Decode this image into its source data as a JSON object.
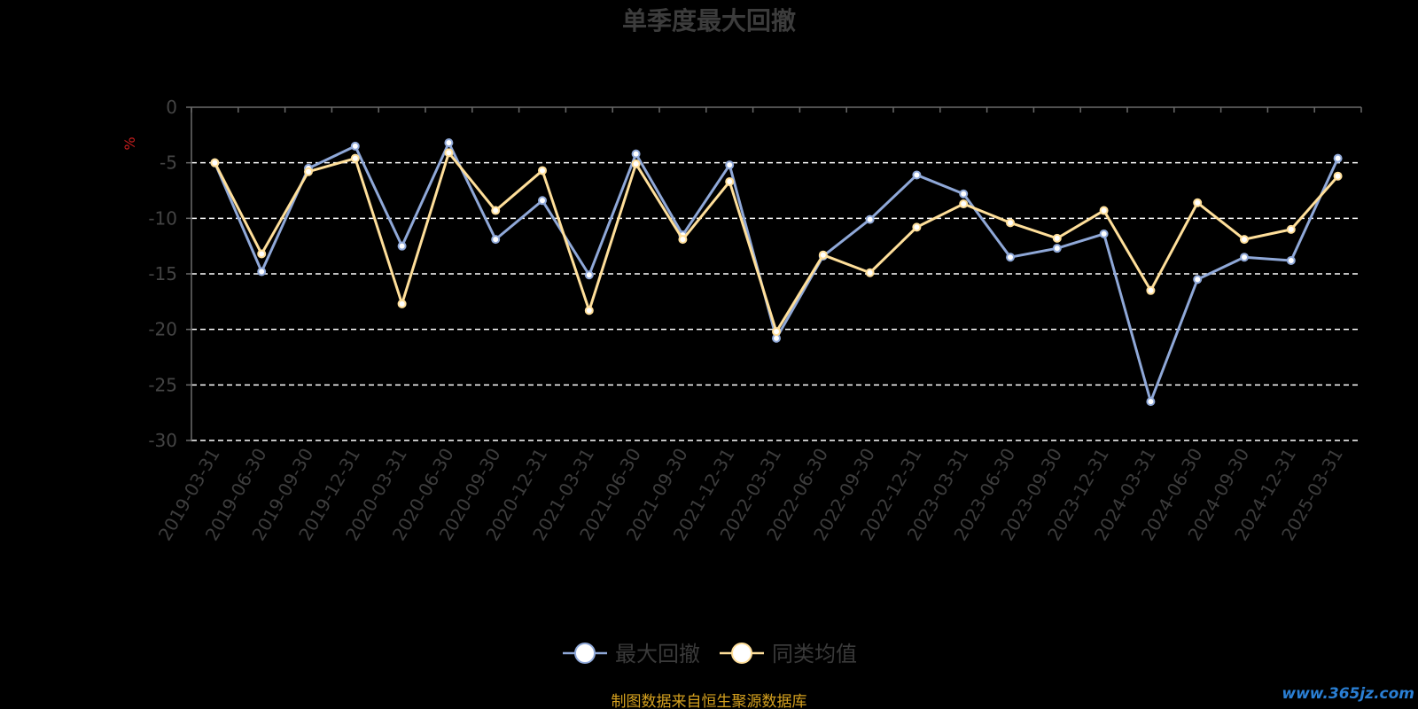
{
  "colors": {
    "background": "#000000",
    "axis": "#6a6a6a",
    "gridline": "#ffffff",
    "series_1": "#8fa8d8",
    "series_2": "#ffdf9a",
    "marker_fill": "#ffffff",
    "source_text": "#d4a01e",
    "watermark": "#2a7fd4",
    "unit": "#c81e1e"
  },
  "footer": {
    "source": "制图数据来自恒生聚源数据库",
    "watermark": "www.365jz.com"
  },
  "chart_data": {
    "type": "line",
    "title": "单季度最大回撤",
    "ylabel": "%",
    "xlabel": "",
    "ylim": [
      -30,
      0
    ],
    "yticks": [
      0,
      -5,
      -10,
      -15,
      -20,
      -25,
      -30
    ],
    "grid": true,
    "legend_position": "bottom-center",
    "categories": [
      "2019-03-31",
      "2019-06-30",
      "2019-09-30",
      "2019-12-31",
      "2020-03-31",
      "2020-06-30",
      "2020-09-30",
      "2020-12-31",
      "2021-03-31",
      "2021-06-30",
      "2021-09-30",
      "2021-12-31",
      "2022-03-31",
      "2022-06-30",
      "2022-09-30",
      "2022-12-31",
      "2023-03-31",
      "2023-06-30",
      "2023-09-30",
      "2023-12-31",
      "2024-03-31",
      "2024-06-30",
      "2024-09-30",
      "2024-12-31",
      "2025-03-31"
    ],
    "series": [
      {
        "name": "最大回撤",
        "color": "#8fa8d8",
        "values": [
          -5.0,
          -14.8,
          -5.5,
          -3.5,
          -12.5,
          -3.2,
          -11.9,
          -8.4,
          -15.1,
          -4.2,
          -11.5,
          -5.2,
          -20.8,
          -13.4,
          -10.1,
          -6.1,
          -7.8,
          -13.5,
          -12.7,
          -11.4,
          -26.5,
          -15.5,
          -13.5,
          -13.8,
          -4.6
        ]
      },
      {
        "name": "同类均值",
        "color": "#ffdf9a",
        "values": [
          -5.0,
          -13.2,
          -5.8,
          -4.6,
          -17.7,
          -4.1,
          -9.3,
          -5.7,
          -18.3,
          -5.1,
          -11.9,
          -6.7,
          -20.2,
          -13.3,
          -14.9,
          -10.8,
          -8.7,
          -10.4,
          -11.8,
          -9.3,
          -16.5,
          -8.6,
          -11.9,
          -11.0,
          -6.2
        ]
      }
    ]
  }
}
